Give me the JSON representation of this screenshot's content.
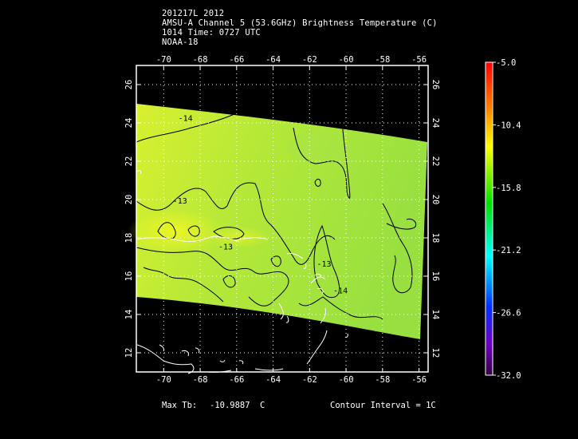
{
  "header": {
    "line1": "201217L 2012",
    "line2": "AMSU-A Channel 5 (53.6GHz) Brightness Temperature (C)",
    "line3": "1014 Time: 0727 UTC",
    "line4": "NOAA-18"
  },
  "map": {
    "lon_ticks": [
      "-70",
      "-68",
      "-66",
      "-64",
      "-62",
      "-60",
      "-58",
      "-56"
    ],
    "lat_ticks": [
      "12",
      "14",
      "16",
      "18",
      "20",
      "22",
      "24",
      "26"
    ],
    "lon_range": [
      -71.5,
      -55.5
    ],
    "lat_range": [
      11,
      27
    ],
    "contour_labels": [
      {
        "text": "-14",
        "lon": -69.2,
        "lat": 24.1
      },
      {
        "text": "-13",
        "lon": -69.5,
        "lat": 19.8
      },
      {
        "text": "-13",
        "lon": -67.0,
        "lat": 17.4
      },
      {
        "text": "-13",
        "lon": -61.6,
        "lat": 16.5
      },
      {
        "text": "-14",
        "lon": -60.7,
        "lat": 15.1
      }
    ]
  },
  "colorbar": {
    "labels": [
      "-5.0",
      "-10.4",
      "-15.8",
      "-21.2",
      "-26.6",
      "-32.0"
    ],
    "colors": [
      "#ff0000",
      "#ff8000",
      "#ffff00",
      "#00ff00",
      "#00ffff",
      "#0000ff",
      "#8000ff",
      "#400060"
    ]
  },
  "footer": {
    "max_tb_label": "Max Tb:",
    "max_tb_value": "-10.9887",
    "max_tb_unit": "C",
    "contour_interval": "Contour Interval = 1C"
  }
}
